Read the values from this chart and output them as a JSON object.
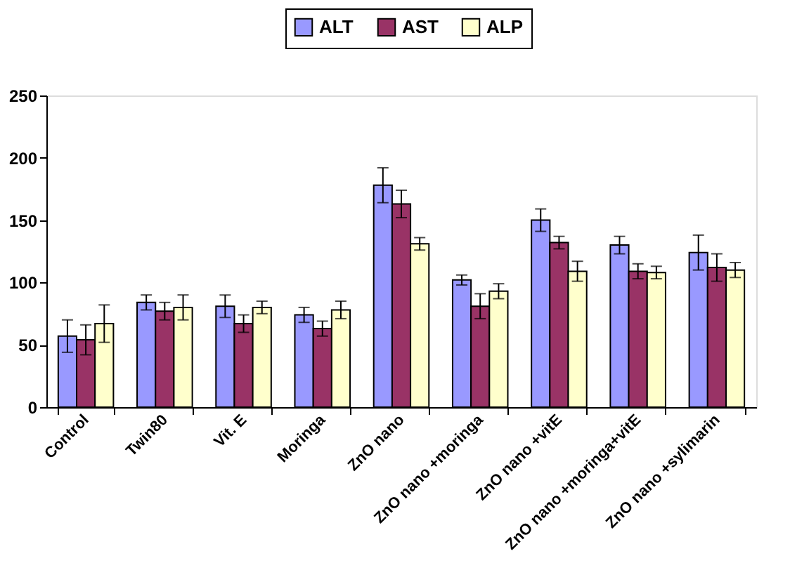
{
  "chart_data": {
    "type": "bar",
    "categories": [
      "Control",
      "Twin80",
      "Vit. E",
      "Moringa",
      "ZnO nano",
      "ZnO nano +moringa",
      "ZnO nano +vitE",
      "ZnO nano +moringa+vitE",
      "ZnO nano +sylimarin"
    ],
    "series": [
      {
        "name": "ALT",
        "color": "#9999ff",
        "values": [
          57,
          84,
          81,
          74,
          178,
          102,
          150,
          130,
          124
        ],
        "errors": [
          13,
          6,
          9,
          6,
          14,
          4,
          9,
          7,
          14
        ]
      },
      {
        "name": "AST",
        "color": "#993366",
        "values": [
          54,
          77,
          67,
          63,
          163,
          81,
          132,
          109,
          112
        ],
        "errors": [
          12,
          7,
          7,
          6,
          11,
          10,
          5,
          6,
          11
        ]
      },
      {
        "name": "ALP",
        "color": "#ffffcc",
        "values": [
          67,
          80,
          80,
          78,
          131,
          93,
          109,
          108,
          110
        ],
        "errors": [
          15,
          10,
          5,
          7,
          5,
          6,
          8,
          5,
          6
        ]
      }
    ],
    "ylim": [
      0,
      250
    ],
    "yticks": [
      0,
      50,
      100,
      150,
      200,
      250
    ],
    "grid": false,
    "legend": "top"
  }
}
